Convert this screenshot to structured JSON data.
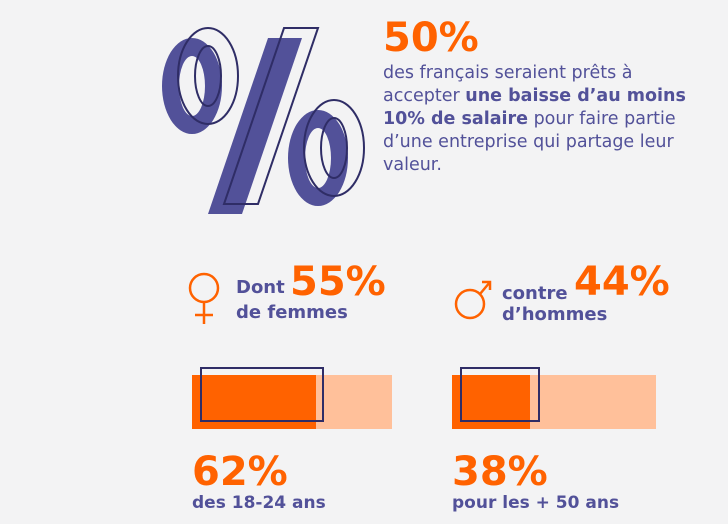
{
  "headline": {
    "value": "50%",
    "text_part1": "des français seraient prêts à accepter ",
    "text_bold": "une baisse d’au moins 10% de salaire",
    "text_part2": " pour faire partie d’une entreprise qui partage leur valeur."
  },
  "women": {
    "icon": "female-symbol-icon",
    "prefix": "Dont",
    "value": "55%",
    "suffix": "de femmes"
  },
  "men": {
    "icon": "male-symbol-icon",
    "prefix": "contre",
    "value": "44%",
    "suffix": "d’hommes"
  },
  "age_young": {
    "value": "62%",
    "label": "des 18-24 ans",
    "fill_fraction": 0.62
  },
  "age_old": {
    "value": "38%",
    "label": "pour les + 50 ans",
    "fill_fraction": 0.38
  },
  "colors": {
    "orange": "#ff6200",
    "light_orange": "#ffc09a",
    "purple": "#525199",
    "dark_navy": "#2f2d66",
    "background": "#f3f3f4"
  }
}
